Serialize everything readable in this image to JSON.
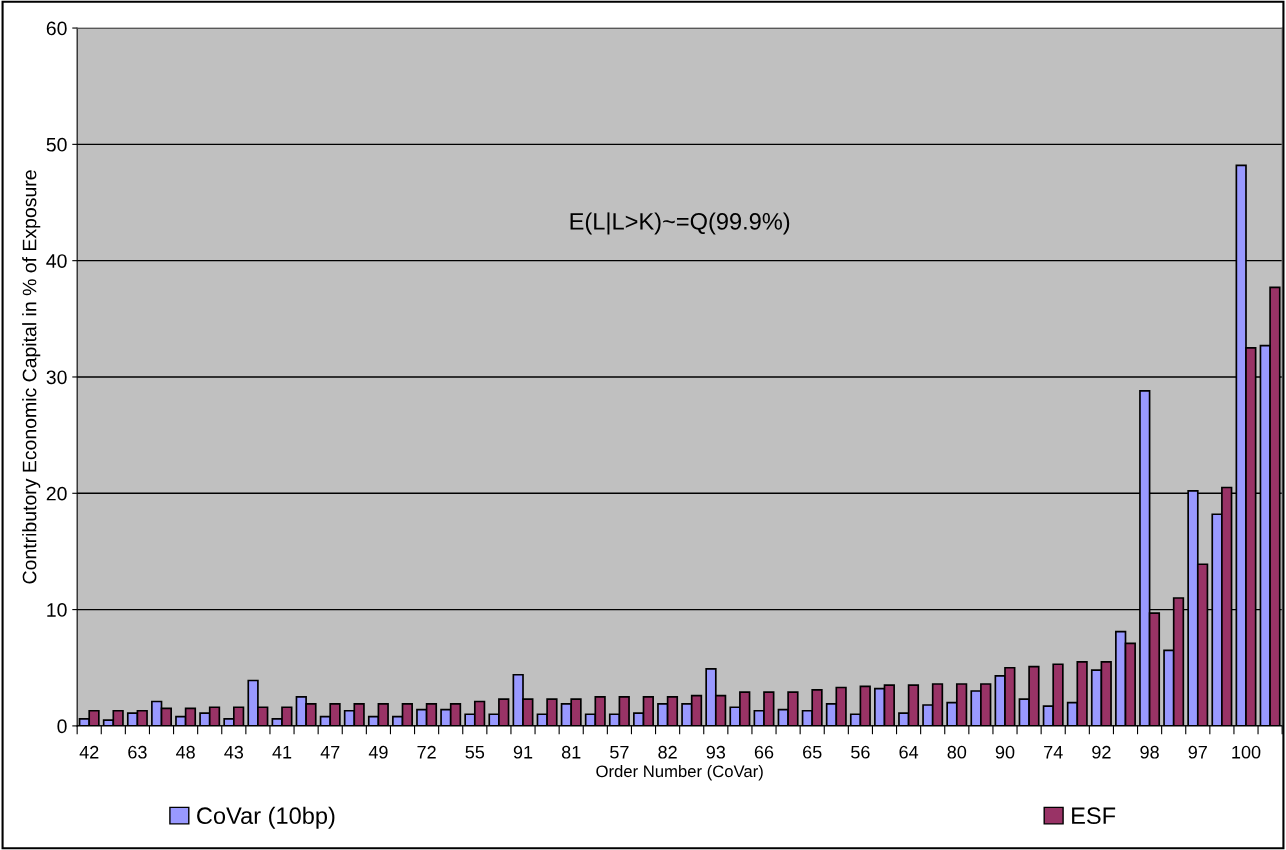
{
  "chart_data": {
    "type": "bar",
    "xlabel": "Order Number (CoVar)",
    "ylabel": "Contributory Economic Capital in % of Exposure",
    "annotations": [
      "E(L|L>K)~=Q(99.9%)"
    ],
    "categories": [
      "42",
      null,
      "63",
      null,
      "48",
      null,
      "43",
      null,
      "41",
      null,
      "47",
      null,
      "49",
      null,
      "72",
      null,
      "55",
      null,
      "91",
      null,
      "81",
      null,
      "57",
      null,
      "82",
      null,
      "93",
      null,
      "66",
      null,
      "65",
      null,
      "56",
      null,
      "64",
      null,
      "80",
      null,
      "90",
      null,
      "74",
      null,
      "92",
      null,
      "98",
      null,
      "97",
      null,
      "100",
      null
    ],
    "series": [
      {
        "name": "CoVar (10bp)",
        "color": "#9999ff",
        "values": [
          0.6,
          0.5,
          1.1,
          2.1,
          0.8,
          1.1,
          0.6,
          3.9,
          0.6,
          2.5,
          0.8,
          1.3,
          0.8,
          0.8,
          1.4,
          1.4,
          1.0,
          1.0,
          4.4,
          1.0,
          1.9,
          1.0,
          1.0,
          1.1,
          1.9,
          1.9,
          4.9,
          1.6,
          1.3,
          1.4,
          1.3,
          1.9,
          1.0,
          3.2,
          1.1,
          1.8,
          2.0,
          3.0,
          4.3,
          2.3,
          1.7,
          2.0,
          4.8,
          8.1,
          28.8,
          6.5,
          20.2,
          18.2,
          48.2,
          32.7
        ]
      },
      {
        "name": "ESF",
        "color": "#993366",
        "values": [
          1.3,
          1.3,
          1.3,
          1.5,
          1.5,
          1.6,
          1.6,
          1.6,
          1.6,
          1.9,
          1.9,
          1.9,
          1.9,
          1.9,
          1.9,
          1.9,
          2.1,
          2.3,
          2.3,
          2.3,
          2.3,
          2.5,
          2.5,
          2.5,
          2.5,
          2.6,
          2.6,
          2.9,
          2.9,
          2.9,
          3.1,
          3.3,
          3.4,
          3.5,
          3.5,
          3.6,
          3.6,
          3.6,
          5.0,
          5.1,
          5.3,
          5.5,
          5.5,
          7.1,
          9.7,
          11.0,
          13.9,
          20.5,
          32.5,
          37.7
        ]
      }
    ],
    "ylim": [
      0,
      60
    ],
    "yticks": [
      0,
      10,
      20,
      30,
      40,
      50,
      60
    ],
    "grid": "y",
    "legend": "bottom"
  }
}
